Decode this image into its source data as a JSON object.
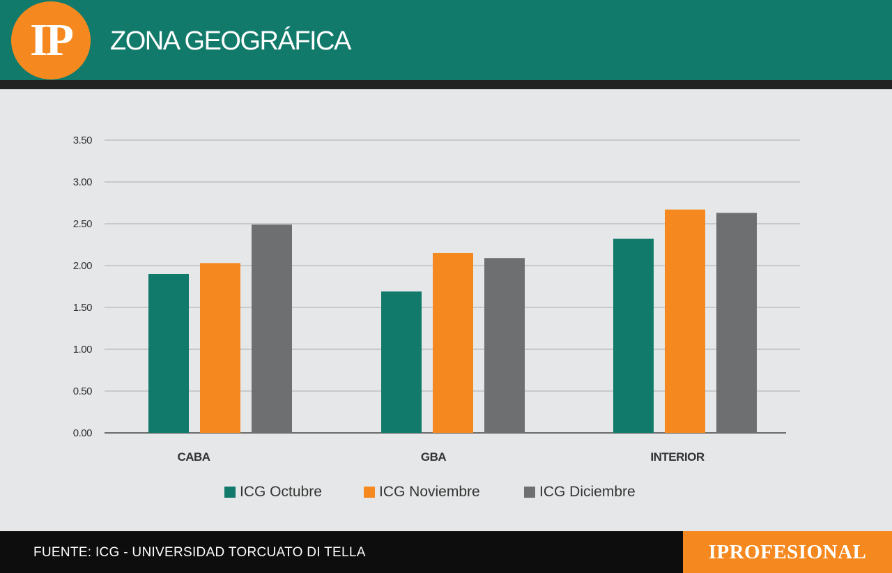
{
  "header": {
    "logo_text": "IP",
    "title": "ZONA GEOGRÁFICA"
  },
  "footer": {
    "source": "FUENTE: ICG - UNIVERSIDAD TORCUATO DI TELLA",
    "brand": "IPROFESIONAL"
  },
  "colors": {
    "header": "#127a6b",
    "accent": "#f5891f",
    "series": [
      "#127a6b",
      "#f5891f",
      "#6e6f71"
    ]
  },
  "chart_data": {
    "type": "bar",
    "title": "ZONA GEOGRÁFICA",
    "categories": [
      "CABA",
      "GBA",
      "INTERIOR"
    ],
    "series": [
      {
        "name": "ICG Octubre",
        "values": [
          1.9,
          1.69,
          2.32
        ]
      },
      {
        "name": "ICG Noviembre",
        "values": [
          2.03,
          2.15,
          2.67
        ]
      },
      {
        "name": "ICG Diciembre",
        "values": [
          2.49,
          2.09,
          2.63
        ]
      }
    ],
    "yticks": [
      "0.00",
      "0.50",
      "1.00",
      "1.50",
      "2.00",
      "2.50",
      "3.00",
      "3.50"
    ],
    "ylim": [
      0,
      3.5
    ],
    "grid": true,
    "legend": "bottom"
  }
}
